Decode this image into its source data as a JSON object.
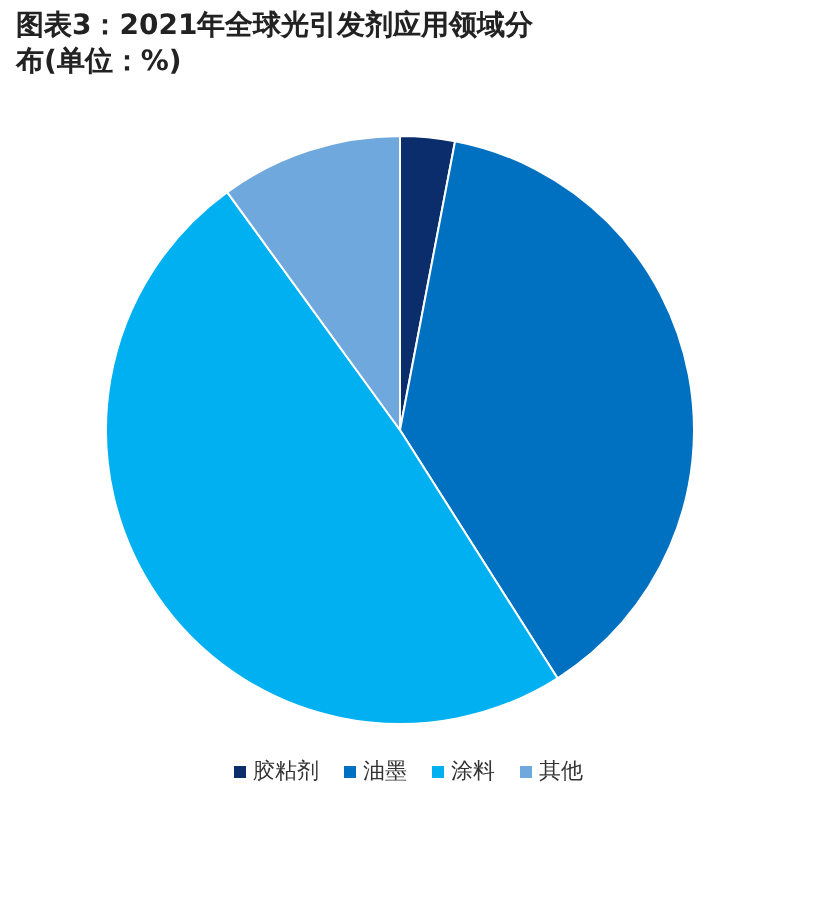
{
  "chart_data": {
    "type": "pie",
    "title": "图表3：2021年全球光引发剂应用领域分布(单位：%)",
    "categories": [
      "胶粘剂",
      "油墨",
      "涂料",
      "其他"
    ],
    "values": [
      3,
      38,
      49,
      10
    ],
    "colors": [
      "#0b2d6b",
      "#0070c0",
      "#00b0f0",
      "#6fa8dc"
    ],
    "legend": "bottom"
  }
}
